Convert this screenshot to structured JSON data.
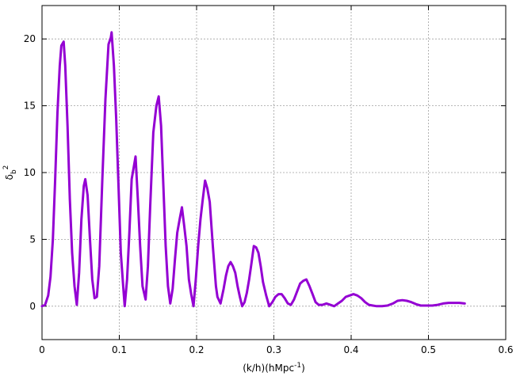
{
  "chart_data": {
    "type": "line",
    "title": "",
    "xlabel": "(k/h)(hMpc",
    "xlabel_sup": "-1",
    "xlabel_close": ")",
    "ylabel": "δ",
    "ylabel_sub": "b",
    "ylabel_sup": "2",
    "xlim": [
      0,
      0.6
    ],
    "ylim": [
      -2.5,
      22.5
    ],
    "x_ticks": [
      "0",
      "0.1",
      "0.2",
      "0.3",
      "0.4",
      "0.5",
      "0.6"
    ],
    "x_tick_values": [
      0,
      0.1,
      0.2,
      0.3,
      0.4,
      0.5,
      0.6
    ],
    "y_ticks": [
      "0",
      "5",
      "10",
      "15",
      "20"
    ],
    "y_tick_values": [
      0,
      5,
      10,
      15,
      20
    ],
    "grid": true,
    "series": [
      {
        "color": "#9400d3",
        "points": [
          [
            0.0,
            0.0
          ],
          [
            0.004,
            0.1
          ],
          [
            0.008,
            0.8
          ],
          [
            0.011,
            2.2
          ],
          [
            0.014,
            5.0
          ],
          [
            0.017,
            9.5
          ],
          [
            0.02,
            14.5
          ],
          [
            0.023,
            18.0
          ],
          [
            0.025,
            19.5
          ],
          [
            0.028,
            19.8
          ],
          [
            0.03,
            18.0
          ],
          [
            0.033,
            13.5
          ],
          [
            0.036,
            8.0
          ],
          [
            0.039,
            4.0
          ],
          [
            0.042,
            1.5
          ],
          [
            0.045,
            0.1
          ],
          [
            0.048,
            2.5
          ],
          [
            0.051,
            6.5
          ],
          [
            0.054,
            9.0
          ],
          [
            0.056,
            9.5
          ],
          [
            0.059,
            8.3
          ],
          [
            0.062,
            5.0
          ],
          [
            0.065,
            2.0
          ],
          [
            0.068,
            0.6
          ],
          [
            0.071,
            0.7
          ],
          [
            0.074,
            3.0
          ],
          [
            0.078,
            9.5
          ],
          [
            0.082,
            15.5
          ],
          [
            0.086,
            19.6
          ],
          [
            0.089,
            20.1
          ],
          [
            0.09,
            20.5
          ],
          [
            0.093,
            18.0
          ],
          [
            0.096,
            14.0
          ],
          [
            0.099,
            9.0
          ],
          [
            0.102,
            4.0
          ],
          [
            0.105,
            1.5
          ],
          [
            0.107,
            0.0
          ],
          [
            0.11,
            2.0
          ],
          [
            0.113,
            5.5
          ],
          [
            0.116,
            9.5
          ],
          [
            0.119,
            10.5
          ],
          [
            0.121,
            11.2
          ],
          [
            0.124,
            8.0
          ],
          [
            0.127,
            4.5
          ],
          [
            0.13,
            1.5
          ],
          [
            0.134,
            0.5
          ],
          [
            0.137,
            3.0
          ],
          [
            0.14,
            7.5
          ],
          [
            0.144,
            13.0
          ],
          [
            0.148,
            15.0
          ],
          [
            0.151,
            15.7
          ],
          [
            0.154,
            13.5
          ],
          [
            0.157,
            9.0
          ],
          [
            0.16,
            4.5
          ],
          [
            0.163,
            1.5
          ],
          [
            0.166,
            0.2
          ],
          [
            0.169,
            1.3
          ],
          [
            0.172,
            3.5
          ],
          [
            0.175,
            5.5
          ],
          [
            0.178,
            6.5
          ],
          [
            0.181,
            7.4
          ],
          [
            0.184,
            6.0
          ],
          [
            0.187,
            4.5
          ],
          [
            0.19,
            2.0
          ],
          [
            0.193,
            0.9
          ],
          [
            0.196,
            0.0
          ],
          [
            0.199,
            2.0
          ],
          [
            0.202,
            4.5
          ],
          [
            0.205,
            6.5
          ],
          [
            0.208,
            8.0
          ],
          [
            0.211,
            9.4
          ],
          [
            0.214,
            8.8
          ],
          [
            0.217,
            7.8
          ],
          [
            0.221,
            4.5
          ],
          [
            0.225,
            1.5
          ],
          [
            0.227,
            0.7
          ],
          [
            0.231,
            0.2
          ],
          [
            0.235,
            1.3
          ],
          [
            0.238,
            2.3
          ],
          [
            0.241,
            3.0
          ],
          [
            0.244,
            3.3
          ],
          [
            0.247,
            3.0
          ],
          [
            0.25,
            2.5
          ],
          [
            0.253,
            1.5
          ],
          [
            0.256,
            0.7
          ],
          [
            0.259,
            0.0
          ],
          [
            0.262,
            0.3
          ],
          [
            0.265,
            1.0
          ],
          [
            0.268,
            2.0
          ],
          [
            0.271,
            3.2
          ],
          [
            0.274,
            4.5
          ],
          [
            0.277,
            4.4
          ],
          [
            0.28,
            4.0
          ],
          [
            0.283,
            3.0
          ],
          [
            0.286,
            1.8
          ],
          [
            0.29,
            0.8
          ],
          [
            0.294,
            0.0
          ],
          [
            0.298,
            0.3
          ],
          [
            0.302,
            0.7
          ],
          [
            0.306,
            0.9
          ],
          [
            0.31,
            0.9
          ],
          [
            0.314,
            0.6
          ],
          [
            0.318,
            0.2
          ],
          [
            0.322,
            0.1
          ],
          [
            0.326,
            0.5
          ],
          [
            0.33,
            1.1
          ],
          [
            0.334,
            1.7
          ],
          [
            0.338,
            1.9
          ],
          [
            0.342,
            2.0
          ],
          [
            0.346,
            1.5
          ],
          [
            0.35,
            0.9
          ],
          [
            0.354,
            0.3
          ],
          [
            0.358,
            0.1
          ],
          [
            0.363,
            0.1
          ],
          [
            0.368,
            0.2
          ],
          [
            0.373,
            0.1
          ],
          [
            0.378,
            0.0
          ],
          [
            0.383,
            0.2
          ],
          [
            0.388,
            0.4
          ],
          [
            0.393,
            0.7
          ],
          [
            0.398,
            0.8
          ],
          [
            0.403,
            0.9
          ],
          [
            0.408,
            0.8
          ],
          [
            0.413,
            0.6
          ],
          [
            0.418,
            0.3
          ],
          [
            0.423,
            0.1
          ],
          [
            0.428,
            0.05
          ],
          [
            0.433,
            0.0
          ],
          [
            0.44,
            0.0
          ],
          [
            0.447,
            0.05
          ],
          [
            0.454,
            0.2
          ],
          [
            0.46,
            0.4
          ],
          [
            0.466,
            0.45
          ],
          [
            0.472,
            0.4
          ],
          [
            0.478,
            0.3
          ],
          [
            0.484,
            0.15
          ],
          [
            0.49,
            0.05
          ],
          [
            0.497,
            0.05
          ],
          [
            0.505,
            0.05
          ],
          [
            0.512,
            0.1
          ],
          [
            0.519,
            0.2
          ],
          [
            0.526,
            0.25
          ],
          [
            0.533,
            0.25
          ],
          [
            0.54,
            0.25
          ],
          [
            0.547,
            0.2
          ]
        ]
      }
    ]
  }
}
